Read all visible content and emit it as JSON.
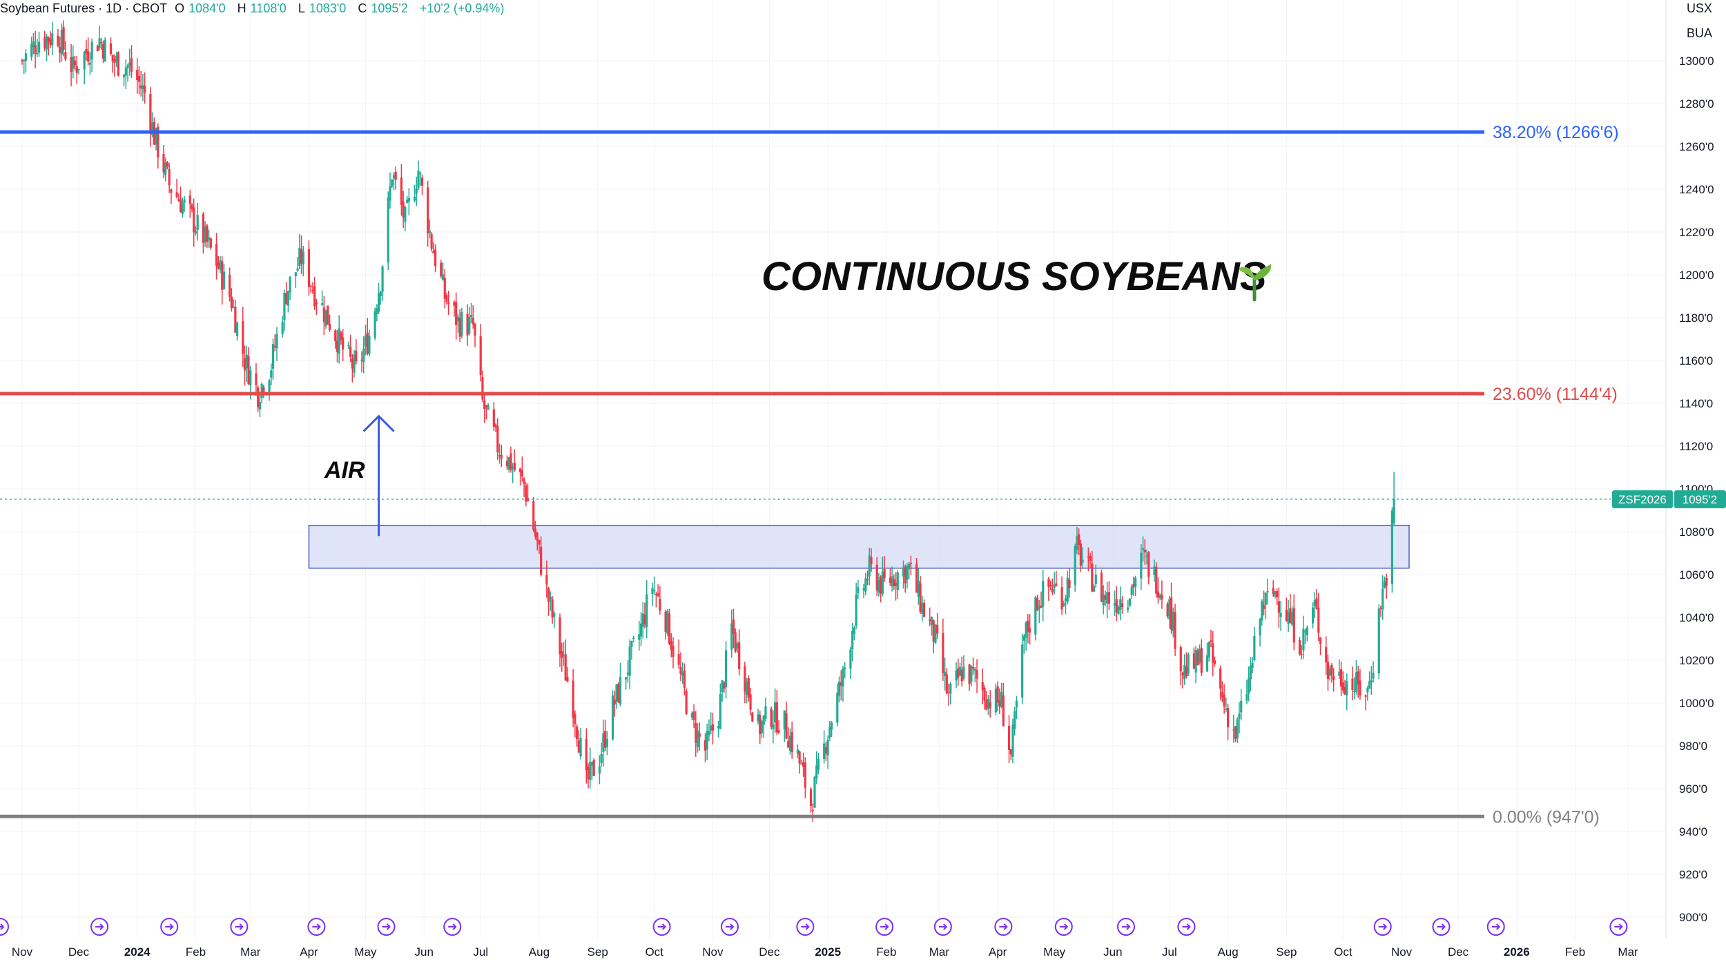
{
  "header": {
    "symbol_title": "Soybean Futures · 1D · CBOT",
    "open_label": "O",
    "open_value": "1084'0",
    "high_label": "H",
    "high_value": "1108'0",
    "low_label": "L",
    "low_value": "1083'0",
    "close_label": "C",
    "close_value": "1095'2",
    "change": "+10'2 (+0.94%)"
  },
  "axis_badges": {
    "currency": "USX",
    "mode": "BUA"
  },
  "price_tag": {
    "symbol": "ZSF2026",
    "price": "1095'2"
  },
  "colors": {
    "up": "#22ab94",
    "down": "#f23645",
    "fib_382": "#2962ff",
    "fib_236": "#e04b4b",
    "fib_0": "#808080",
    "zone_fill": "#d8ddf7",
    "zone_border": "#4a5fc1",
    "arrow": "#3b5bdb"
  },
  "chart_data": {
    "type": "candlestick",
    "title": "CONTINUOUS SOYBEANS",
    "title_icon": "seedling-icon",
    "annotation": "AIR",
    "ylim": [
      893,
      1318
    ],
    "y_ticks": [
      "1300'0",
      "1280'0",
      "1260'0",
      "1240'0",
      "1220'0",
      "1200'0",
      "1180'0",
      "1160'0",
      "1140'0",
      "1120'0",
      "1100'0",
      "1080'0",
      "1060'0",
      "1040'0",
      "1020'0",
      "1000'0",
      "980'0",
      "960'0",
      "940'0",
      "920'0",
      "900'0"
    ],
    "y_tick_values": [
      1300,
      1280,
      1260,
      1240,
      1220,
      1200,
      1180,
      1160,
      1140,
      1120,
      1100,
      1080,
      1060,
      1040,
      1020,
      1000,
      980,
      960,
      940,
      920,
      900
    ],
    "x_ticks": [
      "Nov",
      "Dec",
      "2024",
      "Feb",
      "Mar",
      "Apr",
      "May",
      "Jun",
      "Jul",
      "Aug",
      "Sep",
      "Oct",
      "Nov",
      "Dec",
      "2025",
      "Feb",
      "Mar",
      "Apr",
      "May",
      "Jun",
      "Jul",
      "Aug",
      "Sep",
      "Oct",
      "Nov",
      "Dec",
      "2026",
      "Feb",
      "Mar"
    ],
    "x_tick_dates": [
      "2023-11-01",
      "2023-12-01",
      "2024-01-01",
      "2024-02-01",
      "2024-03-01",
      "2024-04-01",
      "2024-05-01",
      "2024-06-01",
      "2024-07-01",
      "2024-08-01",
      "2024-09-01",
      "2024-10-01",
      "2024-11-01",
      "2024-12-01",
      "2025-01-01",
      "2025-02-01",
      "2025-03-01",
      "2025-04-01",
      "2025-05-01",
      "2025-06-01",
      "2025-07-01",
      "2025-08-01",
      "2025-09-01",
      "2025-10-01",
      "2025-11-01",
      "2025-12-01",
      "2026-01-01",
      "2026-02-01",
      "2026-03-01"
    ],
    "x_bold_ticks": [
      "2024",
      "2025",
      "2026"
    ],
    "fib_levels": [
      {
        "label": "38.20% (1266'6)",
        "value": 1266.75,
        "color": "#2962ff"
      },
      {
        "label": "23.60% (1144'4)",
        "value": 1144.5,
        "color": "#e04b4b"
      },
      {
        "label": "0.00% (947'0)",
        "value": 947.0,
        "color": "#808080"
      }
    ],
    "zone": {
      "start": "2024-04-01",
      "end": "2025-11-05",
      "low": 1063,
      "high": 1083
    },
    "arrow": {
      "date": "2024-05-08",
      "from": 1078,
      "to": 1134
    },
    "series": [
      {
        "date": "2023-11-01",
        "close": 1300
      },
      {
        "date": "2023-11-10",
        "close": 1310
      },
      {
        "date": "2023-11-20",
        "close": 1312
      },
      {
        "date": "2023-11-28",
        "close": 1296
      },
      {
        "date": "2023-12-05",
        "close": 1304
      },
      {
        "date": "2023-12-12",
        "close": 1310
      },
      {
        "date": "2023-12-19",
        "close": 1300
      },
      {
        "date": "2023-12-28",
        "close": 1297
      },
      {
        "date": "2024-01-05",
        "close": 1285
      },
      {
        "date": "2024-01-10",
        "close": 1265
      },
      {
        "date": "2024-01-18",
        "close": 1242
      },
      {
        "date": "2024-01-26",
        "close": 1232
      },
      {
        "date": "2024-02-05",
        "close": 1218
      },
      {
        "date": "2024-02-12",
        "close": 1206
      },
      {
        "date": "2024-02-20",
        "close": 1188
      },
      {
        "date": "2024-02-27",
        "close": 1160
      },
      {
        "date": "2024-03-05",
        "close": 1145
      },
      {
        "date": "2024-03-12",
        "close": 1158
      },
      {
        "date": "2024-03-20",
        "close": 1192
      },
      {
        "date": "2024-03-28",
        "close": 1208
      },
      {
        "date": "2024-04-05",
        "close": 1190
      },
      {
        "date": "2024-04-12",
        "close": 1178
      },
      {
        "date": "2024-04-19",
        "close": 1165
      },
      {
        "date": "2024-04-26",
        "close": 1155
      },
      {
        "date": "2024-05-03",
        "close": 1172
      },
      {
        "date": "2024-05-09",
        "close": 1198
      },
      {
        "date": "2024-05-15",
        "close": 1248
      },
      {
        "date": "2024-05-22",
        "close": 1225
      },
      {
        "date": "2024-05-29",
        "close": 1249
      },
      {
        "date": "2024-06-05",
        "close": 1215
      },
      {
        "date": "2024-06-12",
        "close": 1190
      },
      {
        "date": "2024-06-19",
        "close": 1178
      },
      {
        "date": "2024-06-27",
        "close": 1176
      },
      {
        "date": "2024-07-02",
        "close": 1140
      },
      {
        "date": "2024-07-10",
        "close": 1120
      },
      {
        "date": "2024-07-17",
        "close": 1112
      },
      {
        "date": "2024-07-24",
        "close": 1102
      },
      {
        "date": "2024-07-30",
        "close": 1078
      },
      {
        "date": "2024-08-05",
        "close": 1052
      },
      {
        "date": "2024-08-12",
        "close": 1025
      },
      {
        "date": "2024-08-19",
        "close": 1000
      },
      {
        "date": "2024-08-26",
        "close": 962
      },
      {
        "date": "2024-09-02",
        "close": 975
      },
      {
        "date": "2024-09-09",
        "close": 998
      },
      {
        "date": "2024-09-16",
        "close": 1015
      },
      {
        "date": "2024-09-23",
        "close": 1032
      },
      {
        "date": "2024-09-30",
        "close": 1055
      },
      {
        "date": "2024-10-07",
        "close": 1040
      },
      {
        "date": "2024-10-14",
        "close": 1015
      },
      {
        "date": "2024-10-21",
        "close": 990
      },
      {
        "date": "2024-10-28",
        "close": 978
      },
      {
        "date": "2024-11-04",
        "close": 995
      },
      {
        "date": "2024-11-11",
        "close": 1035
      },
      {
        "date": "2024-11-18",
        "close": 1012
      },
      {
        "date": "2024-11-25",
        "close": 988
      },
      {
        "date": "2024-12-02",
        "close": 995
      },
      {
        "date": "2024-12-09",
        "close": 990
      },
      {
        "date": "2024-12-16",
        "close": 975
      },
      {
        "date": "2024-12-23",
        "close": 953
      },
      {
        "date": "2025-01-02",
        "close": 990
      },
      {
        "date": "2025-01-09",
        "close": 1012
      },
      {
        "date": "2025-01-16",
        "close": 1045
      },
      {
        "date": "2025-01-23",
        "close": 1062
      },
      {
        "date": "2025-01-30",
        "close": 1055
      },
      {
        "date": "2025-02-06",
        "close": 1060
      },
      {
        "date": "2025-02-13",
        "close": 1063
      },
      {
        "date": "2025-02-20",
        "close": 1045
      },
      {
        "date": "2025-02-27",
        "close": 1030
      },
      {
        "date": "2025-03-06",
        "close": 1002
      },
      {
        "date": "2025-03-13",
        "close": 1015
      },
      {
        "date": "2025-03-20",
        "close": 1012
      },
      {
        "date": "2025-03-27",
        "close": 1002
      },
      {
        "date": "2025-04-03",
        "close": 1000
      },
      {
        "date": "2025-04-08",
        "close": 975
      },
      {
        "date": "2025-04-15",
        "close": 1030
      },
      {
        "date": "2025-04-22",
        "close": 1048
      },
      {
        "date": "2025-04-29",
        "close": 1055
      },
      {
        "date": "2025-05-06",
        "close": 1050
      },
      {
        "date": "2025-05-13",
        "close": 1072
      },
      {
        "date": "2025-05-20",
        "close": 1060
      },
      {
        "date": "2025-05-27",
        "close": 1050
      },
      {
        "date": "2025-06-03",
        "close": 1048
      },
      {
        "date": "2025-06-10",
        "close": 1052
      },
      {
        "date": "2025-06-17",
        "close": 1068
      },
      {
        "date": "2025-06-24",
        "close": 1058
      },
      {
        "date": "2025-07-01",
        "close": 1045
      },
      {
        "date": "2025-07-08",
        "close": 1015
      },
      {
        "date": "2025-07-15",
        "close": 1018
      },
      {
        "date": "2025-07-22",
        "close": 1025
      },
      {
        "date": "2025-07-29",
        "close": 1002
      },
      {
        "date": "2025-08-05",
        "close": 985
      },
      {
        "date": "2025-08-12",
        "close": 1010
      },
      {
        "date": "2025-08-19",
        "close": 1045
      },
      {
        "date": "2025-08-26",
        "close": 1052
      },
      {
        "date": "2025-09-02",
        "close": 1040
      },
      {
        "date": "2025-09-09",
        "close": 1028
      },
      {
        "date": "2025-09-16",
        "close": 1045
      },
      {
        "date": "2025-09-23",
        "close": 1015
      },
      {
        "date": "2025-09-30",
        "close": 1012
      },
      {
        "date": "2025-10-07",
        "close": 1008
      },
      {
        "date": "2025-10-14",
        "close": 1005
      },
      {
        "date": "2025-10-17",
        "close": 1020
      },
      {
        "date": "2025-10-21",
        "close": 1048
      },
      {
        "date": "2025-10-24",
        "close": 1060
      },
      {
        "date": "2025-10-27",
        "close": 1085
      },
      {
        "date": "2025-10-28",
        "close": 1095.25
      }
    ]
  }
}
